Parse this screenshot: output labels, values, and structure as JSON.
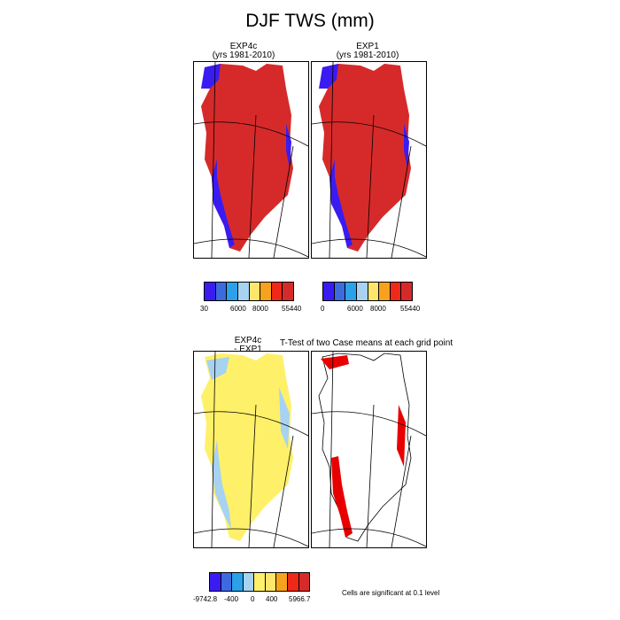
{
  "title": "DJF TWS (mm)",
  "panels": {
    "top_left": {
      "name": "EXP4c",
      "subtitle": "(yrs 1981-2010)"
    },
    "top_right": {
      "name": "EXP1",
      "subtitle": "(yrs 1981-2010)"
    },
    "bottom_left": {
      "name": "EXP4c",
      "subtitle": "- EXP1"
    },
    "bottom_right": {
      "title": "T-Test of two Case means at each grid point"
    }
  },
  "colorbars": {
    "top_left": {
      "colors": [
        "#3a1cf2",
        "#3c6be0",
        "#2aa1e8",
        "#a7d2f2",
        "#fde66b",
        "#f7a21c",
        "#ef2818",
        "#d62a2a"
      ],
      "labels": [
        "30",
        "6000",
        "8000",
        "55440"
      ]
    },
    "top_right": {
      "colors": [
        "#3a1cf2",
        "#3c6be0",
        "#2aa1e8",
        "#a7d2f2",
        "#fde66b",
        "#f7a21c",
        "#ef2818",
        "#d62a2a"
      ],
      "labels": [
        "0",
        "6000",
        "8000",
        "55440"
      ]
    },
    "bottom_left": {
      "colors": [
        "#3a1cf2",
        "#3c6be0",
        "#2aa1e8",
        "#a7d2f2",
        "#fff06a",
        "#fde66b",
        "#f7a21c",
        "#ef2818",
        "#d62a2a"
      ],
      "labels": [
        "-9742.8",
        "-400",
        "0",
        "400",
        "5966.7"
      ]
    }
  },
  "significance_note": "Cells are significant at 0.1 level",
  "map_colors": {
    "fill_dark_red": "#d62a2a",
    "fill_blue": "#3a1cf2",
    "fill_yellow": "#fff06a",
    "fill_light_blue": "#a7d2f2",
    "fill_sig_red": "#e80000"
  }
}
